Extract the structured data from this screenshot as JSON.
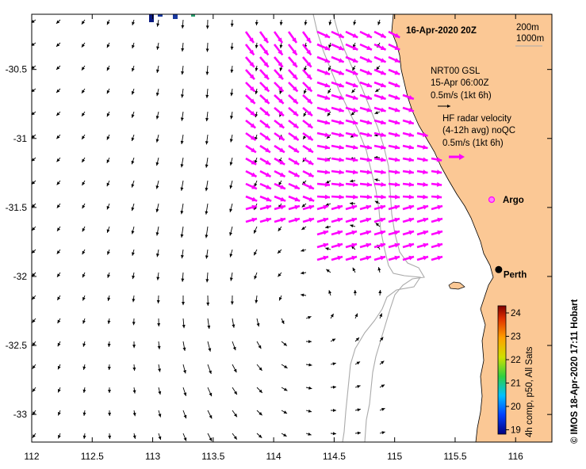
{
  "title": "16-Apr-2020 20Z",
  "depth_legend": [
    "200m",
    "1000m"
  ],
  "x_ticks": [
    112,
    112.5,
    113,
    113.5,
    114,
    114.5,
    115,
    115.5,
    116
  ],
  "x_tick_labels": [
    "112",
    "112.5",
    "113",
    "113.5",
    "114",
    "114.5",
    "115",
    "115.5",
    "116"
  ],
  "y_ticks": [
    -30.5,
    -31,
    -31.5,
    -32,
    -32.5,
    -33
  ],
  "y_tick_labels": [
    "-30.5",
    "-31",
    "-31.5",
    "-32",
    "-32.5",
    "-33"
  ],
  "lon_range": [
    112,
    116.3
  ],
  "lat_range": [
    -33.2,
    -30.1
  ],
  "legend": {
    "gsl": {
      "line1": "NRT00 GSL",
      "line2": "15-Apr 06:00Z",
      "line3": "0.5m/s (1kt 6h)",
      "color": "#000000"
    },
    "hf": {
      "line1": "HF radar velocity",
      "line2": "(4-12h avg) noQC",
      "line3": "0.5m/s (1kt 6h)",
      "color": "#ff00ff"
    },
    "argo": {
      "label": "Argo",
      "color": "#ff33ff"
    }
  },
  "places": [
    {
      "name": "Perth",
      "lon": 115.86,
      "lat": -31.95
    }
  ],
  "colorbar": {
    "ticks": [
      "24",
      "23",
      "22",
      "21",
      "20",
      "19"
    ],
    "label": "4h comp, p50, All Sats"
  },
  "credit": "© IMOS 18-Apr-2020 17:11 Hobart",
  "colors": {
    "land": "#fbc895",
    "isobath": "#aaaaaa",
    "gsl_arrow": "#000000",
    "hf_arrow": "#ff00ff"
  }
}
